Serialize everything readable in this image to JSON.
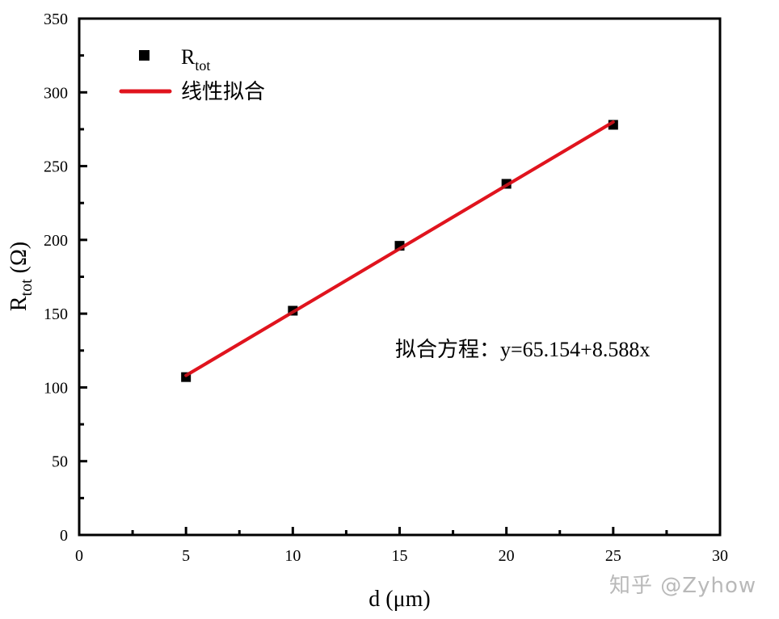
{
  "chart_data": {
    "type": "scatter",
    "title": "",
    "xlabel": "d (μm)",
    "ylabel": "R_tot (Ω)",
    "ylabel_main": "R",
    "ylabel_sub": "tot",
    "ylabel_unit": " (Ω)",
    "xlim": [
      0,
      30
    ],
    "ylim": [
      0,
      350
    ],
    "x_ticks": [
      0,
      5,
      10,
      15,
      20,
      25,
      30
    ],
    "y_ticks": [
      0,
      50,
      100,
      150,
      200,
      250,
      300,
      350
    ],
    "grid": false,
    "legend_position": "upper left",
    "series": [
      {
        "name": "R_tot",
        "legend_main": "R",
        "legend_sub": "tot",
        "kind": "scatter",
        "marker": "square",
        "color": "#000000",
        "x": [
          5,
          10,
          15,
          20,
          25
        ],
        "y": [
          107,
          152,
          196,
          238,
          278
        ]
      },
      {
        "name": "线性拟合",
        "kind": "line",
        "color": "#e0141e",
        "x": [
          5,
          25
        ],
        "y": [
          108.1,
          279.9
        ]
      }
    ],
    "annotations": [
      {
        "text": "拟合方程：y=65.154+8.588x",
        "x": 14.8,
        "y": 126
      }
    ],
    "fit": {
      "intercept": 65.154,
      "slope": 8.588
    }
  },
  "watermark": "知乎 @Zyhow"
}
